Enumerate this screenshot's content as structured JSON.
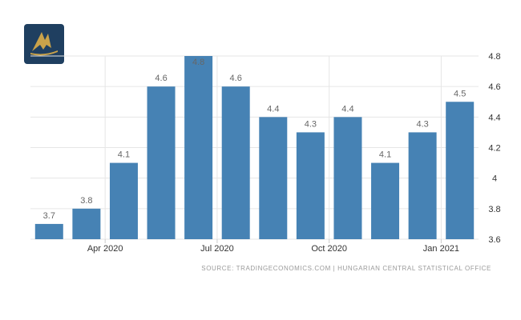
{
  "colors": {
    "bar": "#4682b4",
    "grid": "#e6e6e6",
    "logo_bg": "#1f3f60",
    "logo_gold": "#c9a24a"
  },
  "logo": {
    "icon": "gold-bird-logo-icon"
  },
  "source": "SOURCE: TRADINGECONOMICS.COM  |  HUNGARIAN CENTRAL STATISTICAL OFFICE",
  "chart_data": {
    "type": "bar",
    "values": [
      3.7,
      3.8,
      4.1,
      4.6,
      4.8,
      4.6,
      4.4,
      4.3,
      4.4,
      4.1,
      4.3,
      4.5
    ],
    "data_labels": [
      "3.7",
      "3.8",
      "4.1",
      "4.6",
      "4.8",
      "4.6",
      "4.4",
      "4.3",
      "4.4",
      "4.1",
      "4.3",
      "4.5"
    ],
    "x_ticks": [
      {
        "label": "Apr 2020",
        "index": 1.5
      },
      {
        "label": "Jul 2020",
        "index": 4.5
      },
      {
        "label": "Oct 2020",
        "index": 7.5
      },
      {
        "label": "Jan 2021",
        "index": 10.5
      }
    ],
    "y_ticks": [
      3.6,
      3.8,
      4,
      4.2,
      4.4,
      4.6,
      4.8
    ],
    "y_tick_labels": [
      "3.6",
      "3.8",
      "4",
      "4.2",
      "4.4",
      "4.6",
      "4.8"
    ],
    "ylim": [
      3.6,
      4.8
    ],
    "y_axis_position": "right",
    "grid": true,
    "title": "",
    "xlabel": "",
    "ylabel": ""
  }
}
